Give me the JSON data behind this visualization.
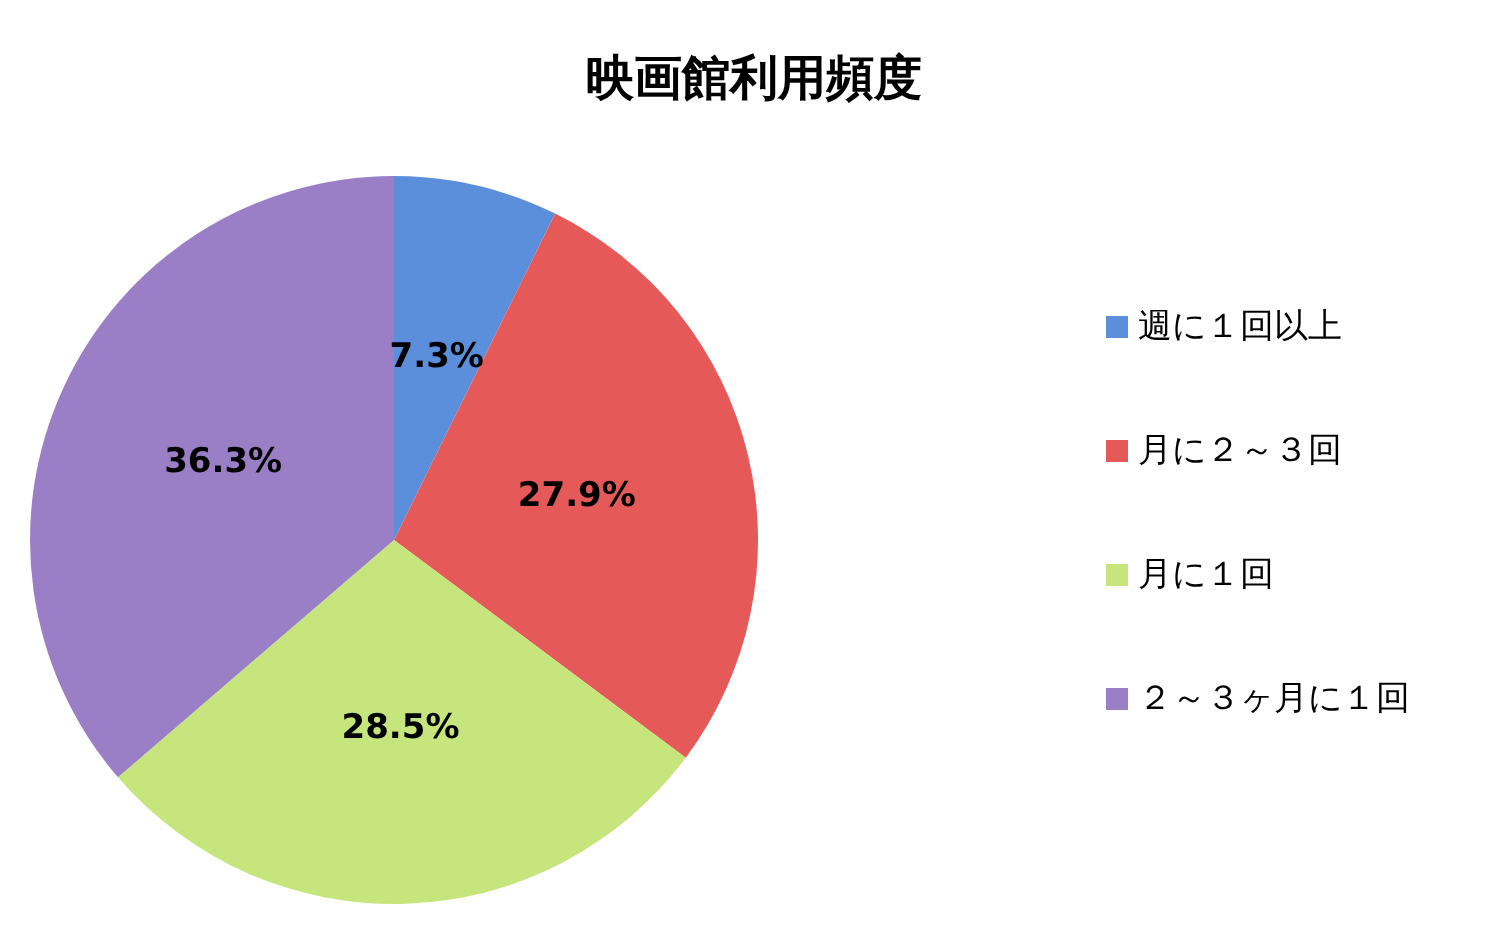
{
  "chart_data": {
    "type": "pie",
    "title": "映画館利用頻度",
    "categories": [
      "週に１回以上",
      "月に２～３回",
      "月に１回",
      "２～３ヶ月に１回"
    ],
    "values": [
      7.3,
      27.9,
      28.5,
      36.3
    ],
    "colors": [
      "#5b8edb",
      "#e55a58",
      "#c6e57c",
      "#9a7fc6"
    ],
    "value_labels": [
      "7.3%",
      "27.9%",
      "28.5%",
      "36.3%"
    ],
    "legend": "right"
  }
}
